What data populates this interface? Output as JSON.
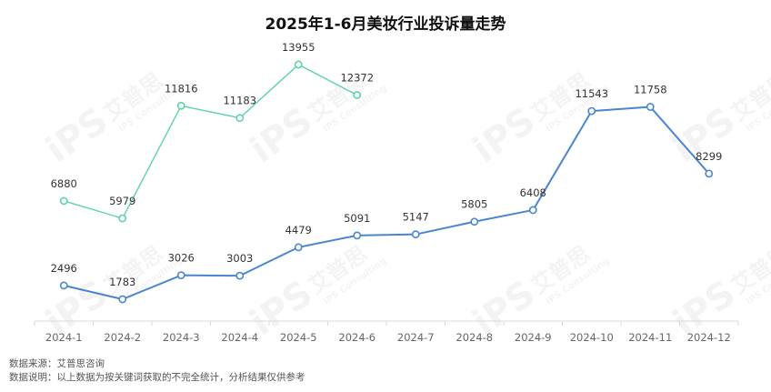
{
  "chart_data": {
    "type": "line",
    "title": "2025年1-6月美妆行业投诉量走势",
    "categories": [
      "2024-1",
      "2024-2",
      "2024-3",
      "2024-4",
      "2024-5",
      "2024-6",
      "2024-7",
      "2024-8",
      "2024-9",
      "2024-10",
      "2024-11",
      "2024-12"
    ],
    "series": [
      {
        "values": [
          2496,
          1783,
          3026,
          3003,
          4479,
          5091,
          5147,
          5805,
          6408,
          11543,
          11758,
          8299
        ],
        "color": "#4a86d0"
      },
      {
        "values": [
          6880,
          5979,
          11816,
          11183,
          13955,
          12372,
          null,
          null,
          null,
          null,
          null,
          null
        ],
        "color": "#5dd4a4"
      }
    ],
    "grid": false,
    "legend": "none"
  },
  "watermark": {
    "brand": "iPS",
    "cn": "艾普思",
    "en": "IPS Consulting"
  },
  "notes": {
    "source": "数据来源：艾普思咨询",
    "description": "数据说明：以上数据为按关键词获取的不完全统计，分析结果仅供参考"
  }
}
